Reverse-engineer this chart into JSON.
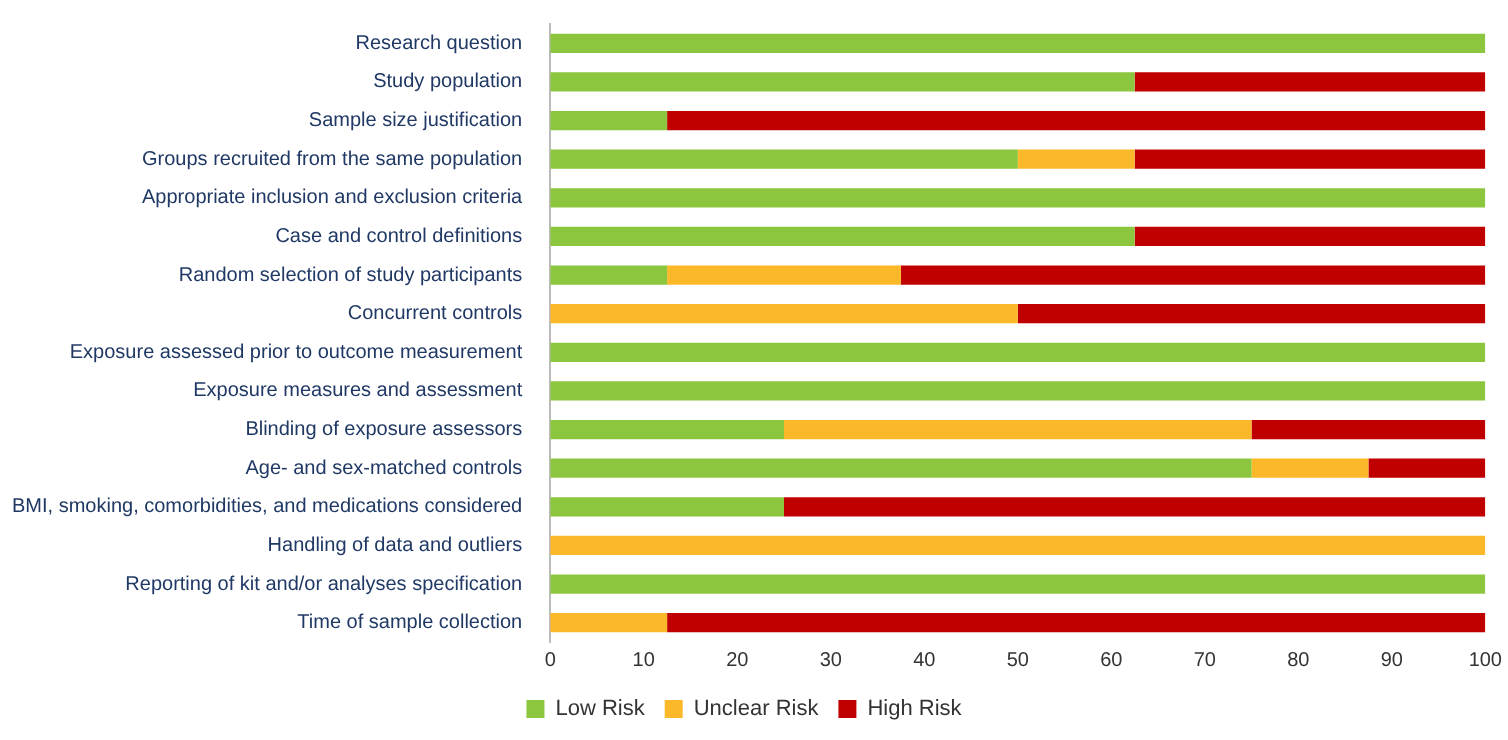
{
  "chart_data": {
    "type": "bar",
    "orientation": "horizontal",
    "stacked": true,
    "categories": [
      "Research question",
      "Study population",
      "Sample size justification",
      "Groups recruited from the same population",
      "Appropriate inclusion and exclusion criteria",
      "Case and control definitions",
      "Random selection of study participants",
      "Concurrent controls",
      "Exposure assessed prior to outcome measurement",
      "Exposure measures and assessment",
      "Blinding of exposure assessors",
      "Age- and sex-matched controls",
      "BMI, smoking, comorbidities, and medications considered",
      "Handling of data and outliers",
      "Reporting of kit and/or analyses specification",
      "Time of sample collection"
    ],
    "series": [
      {
        "name": "Low Risk",
        "color": "#8cc63e",
        "values": [
          100,
          62.5,
          12.5,
          50,
          100,
          62.5,
          12.5,
          0,
          100,
          100,
          25,
          75,
          25,
          0,
          100,
          0
        ]
      },
      {
        "name": "Unclear Risk",
        "color": "#fbb829",
        "values": [
          0,
          0,
          0,
          12.5,
          0,
          0,
          25,
          50,
          0,
          0,
          50,
          12.5,
          0,
          100,
          0,
          12.5
        ]
      },
      {
        "name": "High Risk",
        "color": "#c00000",
        "values": [
          0,
          37.5,
          87.5,
          37.5,
          0,
          37.5,
          62.5,
          50,
          0,
          0,
          25,
          12.5,
          75,
          0,
          0,
          87.5
        ]
      }
    ],
    "xlim": [
      0,
      100
    ],
    "xticks": [
      0,
      10,
      20,
      30,
      40,
      50,
      60,
      70,
      80,
      90,
      100
    ],
    "grid": false,
    "legend": "bottom"
  }
}
